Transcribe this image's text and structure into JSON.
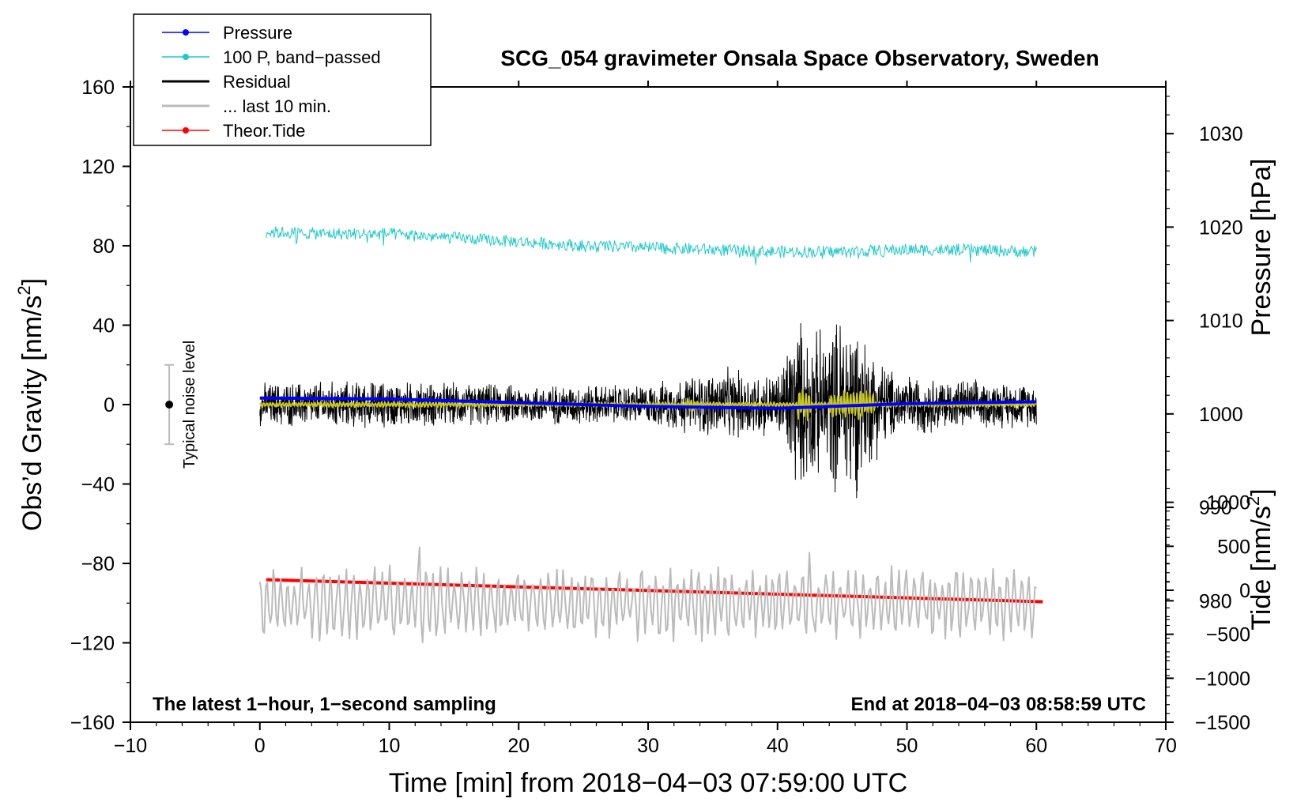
{
  "chart_data": {
    "type": "line",
    "title": "SCG_054 gravimeter Onsala Space Observatory, Sweden",
    "xlabel": "Time [min] from 2018−04−03 07:59:00 UTC",
    "ylabel_left_main": "Obs’d Gravity [nm/s",
    "ylabel_left_sup": "2",
    "ylabel_left_close": "]",
    "ylabel_right_top": "Pressure [hPa]",
    "ylabel_right_bottom_main": "Tide [nm/s",
    "ylabel_right_bottom_sup": "2",
    "ylabel_right_bottom_close": "]",
    "xlim": [
      -10,
      70
    ],
    "ylim": [
      -160,
      160
    ],
    "pressure_lim": [
      967,
      1035
    ],
    "tide_lim": [
      -1500,
      1500
    ],
    "x_ticks": [
      "−10",
      "0",
      "10",
      "20",
      "30",
      "40",
      "50",
      "60",
      "70"
    ],
    "y_ticks": [
      "160",
      "120",
      "80",
      "40",
      "0",
      "−40",
      "−80",
      "−120",
      "−160"
    ],
    "pressure_ticks": [
      "1030",
      "1020",
      "1010",
      "1000",
      "990",
      "980"
    ],
    "tide_ticks": [
      "1000",
      "500",
      "0",
      "−500",
      "−1000",
      "−1500"
    ],
    "note_left": "The latest 1−hour, 1−second sampling",
    "note_right": "End at 2018−04−03 08:58:59 UTC",
    "noise_label": "Typical noise level",
    "noise_bar": {
      "x": -7,
      "center": 0,
      "half_range": 20
    },
    "legend": [
      {
        "label": "Pressure",
        "color": "#0000ff",
        "marker": true
      },
      {
        "label": "100 P, band−passed",
        "color": "#20c8c8",
        "marker": true
      },
      {
        "label": "Residual",
        "color": "#000000",
        "marker": false
      },
      {
        "label": "... last 10 min.",
        "color": "#bbbbbb",
        "marker": false
      },
      {
        "label": "Theor.Tide",
        "color": "#ff0000",
        "marker": true
      }
    ],
    "series": [
      {
        "name": "Pressure",
        "axis": "pressure",
        "color": "#0000ff",
        "x": [
          0,
          10,
          20,
          30,
          40,
          50,
          60
        ],
        "values": [
          1001.7,
          1001.6,
          1001.2,
          1000.8,
          1000.6,
          1001.1,
          1001.3
        ]
      },
      {
        "name": "100 P, band−passed",
        "axis": "left",
        "color": "#20c8c8",
        "x": [
          0,
          5,
          10,
          15,
          20,
          25,
          30,
          35,
          40,
          45,
          50,
          55,
          60
        ],
        "values": [
          87,
          86,
          86,
          84,
          82,
          80,
          79,
          78,
          77,
          77,
          78,
          78,
          77
        ],
        "noise_amplitude": 3
      },
      {
        "name": "Residual",
        "axis": "left",
        "color": "#000000",
        "x_range": [
          0,
          60
        ],
        "envelope_x": [
          0,
          5,
          10,
          20,
          30,
          33,
          36,
          40,
          41.5,
          42.5,
          44,
          45.5,
          47,
          49,
          52,
          56,
          60
        ],
        "envelope_amplitude": [
          12,
          13,
          13,
          11,
          11,
          16,
          20,
          17,
          50,
          40,
          42,
          60,
          35,
          18,
          15,
          13,
          12
        ]
      },
      {
        "name": "Residual smoothed",
        "axis": "left",
        "color": "#c8c820",
        "x_range": [
          0,
          60
        ],
        "amplitude": 1.5
      },
      {
        "name": "Theor.Tide",
        "axis": "tide",
        "color": "#ff0000",
        "x": [
          0.5,
          60.5
        ],
        "values": [
          120,
          -130
        ]
      },
      {
        "name": "... last 10 min.",
        "axis": "left",
        "color": "#bbbbbb",
        "x_range": [
          0,
          60
        ],
        "center": -100,
        "amplitude": 14
      }
    ]
  }
}
